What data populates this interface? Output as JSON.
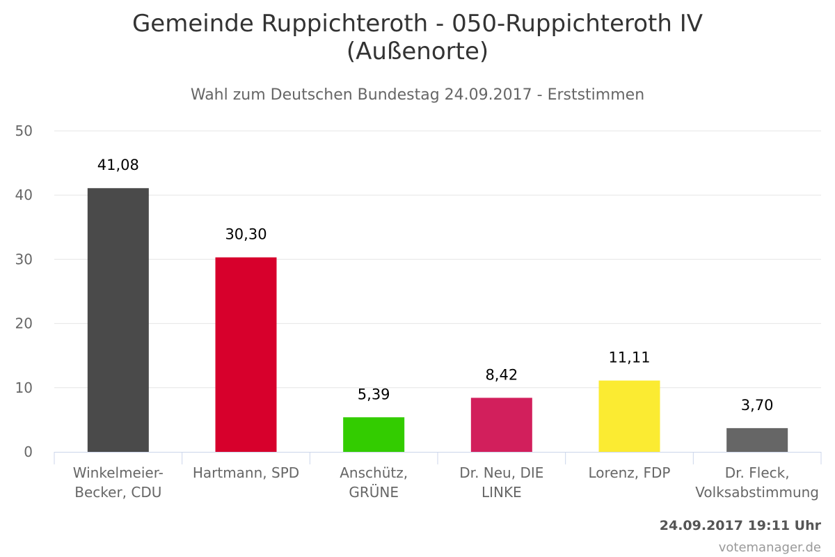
{
  "header": {
    "title_line1": "Gemeinde Ruppichteroth - 050-Ruppichteroth IV",
    "title_line2": "(Außenorte)",
    "subtitle": "Wahl zum Deutschen Bundestag 24.09.2017 - Erststimmen"
  },
  "footer": {
    "timestamp": "24.09.2017 19:11 Uhr",
    "credit": "votemanager.de"
  },
  "chart_data": {
    "type": "bar",
    "title": "Gemeinde Ruppichteroth - 050-Ruppichteroth IV (Außenorte)",
    "subtitle": "Wahl zum Deutschen Bundestag 24.09.2017 - Erststimmen",
    "xlabel": "",
    "ylabel": "",
    "ylim": [
      0,
      50
    ],
    "yticks": [
      0,
      10,
      20,
      30,
      40,
      50
    ],
    "grid": true,
    "categories": [
      [
        "Winkelmeier-",
        "Becker, CDU"
      ],
      [
        "Hartmann, SPD"
      ],
      [
        "Anschütz,",
        "GRÜNE"
      ],
      [
        "Dr. Neu, DIE",
        "LINKE"
      ],
      [
        "Lorenz, FDP"
      ],
      [
        "Dr. Fleck,",
        "Volksabstimmung"
      ]
    ],
    "values": [
      41.08,
      30.3,
      5.39,
      8.42,
      11.11,
      3.7
    ],
    "value_labels": [
      "41,08",
      "30,30",
      "5,39",
      "8,42",
      "11,11",
      "3,70"
    ],
    "colors": [
      "#4a4a4a",
      "#d7002c",
      "#33cc00",
      "#d21f5c",
      "#fbeb32",
      "#666666"
    ]
  }
}
